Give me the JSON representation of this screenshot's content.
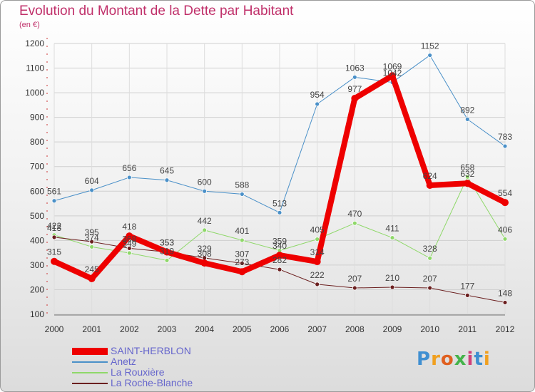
{
  "title": "Evolution du Montant de la Dette par Habitant",
  "subtitle": "(en €)",
  "logo": {
    "text": "Proxiti",
    "colors": [
      "#3f8fd1",
      "#f0a020",
      "#e06020",
      "#44b34a",
      "#d0407a",
      "#3f8fd1",
      "#f0a020"
    ]
  },
  "chart_data": {
    "type": "line",
    "title": "Evolution du Montant de la Dette par Habitant",
    "subtitle": "(en €)",
    "xlabel": "",
    "ylabel": "",
    "categories": [
      "2000",
      "2001",
      "2002",
      "2003",
      "2004",
      "2005",
      "2006",
      "2007",
      "2008",
      "2009",
      "2010",
      "2011",
      "2012"
    ],
    "yticks": [
      100,
      200,
      300,
      400,
      500,
      600,
      700,
      800,
      900,
      1000,
      1100,
      1200
    ],
    "ylim": [
      100,
      1200
    ],
    "grid": true,
    "legend_position": "bottom-left",
    "series": [
      {
        "name": "Anetz",
        "color": "#4a90c8",
        "width": 1,
        "values": [
          561,
          604,
          656,
          645,
          600,
          588,
          513,
          954,
          1063,
          1042,
          1152,
          892,
          783
        ],
        "labels": [
          "561",
          "604",
          "656",
          "645",
          "600",
          "588",
          "513",
          "954",
          "1063",
          "1042",
          "1152",
          "892",
          "783"
        ]
      },
      {
        "name": "La Rouxière",
        "color": "#8fd86a",
        "width": 1,
        "values": [
          422,
          374,
          349,
          319,
          442,
          401,
          359,
          405,
          470,
          411,
          328,
          658,
          406
        ],
        "labels": [
          "422",
          "374",
          "349",
          "319",
          "442",
          "401",
          "359",
          "405",
          "470",
          "411",
          "328",
          "658",
          "406"
        ]
      },
      {
        "name": "La Roche-Blanche",
        "color": "#6b1f1f",
        "width": 1,
        "values": [
          413,
          395,
          368,
          353,
          329,
          307,
          282,
          222,
          207,
          210,
          207,
          177,
          148
        ],
        "labels": [
          "413",
          "395",
          "368",
          "353",
          "329",
          "307",
          "282",
          "222",
          "207",
          "210",
          "207",
          "177",
          "148"
        ]
      },
      {
        "name": "SAINT-HERBLON",
        "color": "#ee0000",
        "width": 8,
        "values": [
          315,
          245,
          418,
          353,
          308,
          273,
          340,
          314,
          977,
          1069,
          624,
          632,
          554
        ],
        "labels": [
          "315",
          "245",
          "418",
          "353",
          "308",
          "273",
          "340",
          "314",
          "977",
          "1069",
          "624",
          "632",
          "554"
        ]
      }
    ],
    "legend_order": [
      "SAINT-HERBLON",
      "Anetz",
      "La Rouxière",
      "La Roche-Blanche"
    ]
  }
}
